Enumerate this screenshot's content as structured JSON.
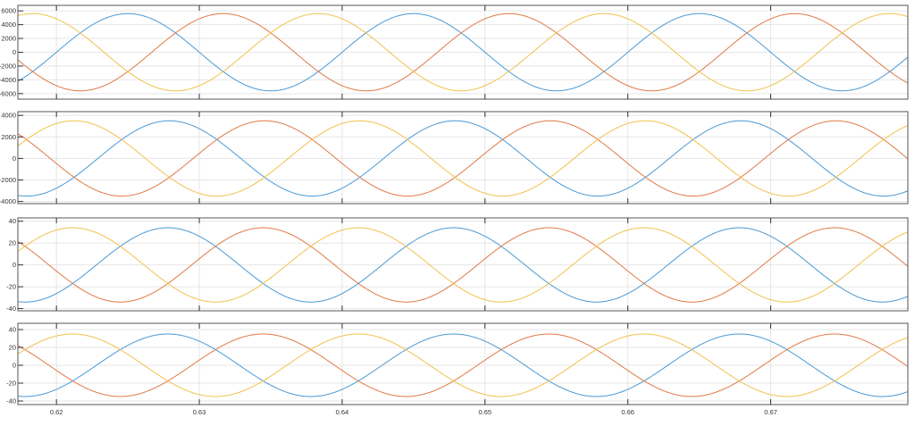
{
  "chart_data": [
    {
      "type": "line",
      "xlim": [
        0.6173,
        0.6796
      ],
      "ylim": [
        -6800,
        6800
      ],
      "yticks": [
        -6000,
        -4000,
        -2000,
        0,
        2000,
        4000,
        6000
      ],
      "xticks": [
        0.62,
        0.63,
        0.64,
        0.65,
        0.66,
        0.67
      ],
      "show_xtick_labels": false,
      "grid": true,
      "series": [
        {
          "color": "#4a9ad6",
          "amplitude": 5600,
          "frequency_hz": 50,
          "peak_time": 0.625
        },
        {
          "color": "#e07a45",
          "amplitude": 5600,
          "frequency_hz": 50,
          "peak_time": 0.63167
        },
        {
          "color": "#f2c14e",
          "amplitude": 5600,
          "frequency_hz": 50,
          "peak_time": 0.61833
        }
      ]
    },
    {
      "type": "line",
      "xlim": [
        0.6173,
        0.6796
      ],
      "ylim": [
        -4200,
        4350
      ],
      "yticks": [
        -4000,
        -2000,
        0,
        2000,
        4000
      ],
      "xticks": [
        0.62,
        0.63,
        0.64,
        0.65,
        0.66,
        0.67
      ],
      "show_xtick_labels": false,
      "grid": true,
      "series": [
        {
          "color": "#4a9ad6",
          "amplitude": 3500,
          "frequency_hz": 50,
          "peak_time": 0.6279
        },
        {
          "color": "#e07a45",
          "amplitude": 3500,
          "frequency_hz": 50,
          "peak_time": 0.63457
        },
        {
          "color": "#f2c14e",
          "amplitude": 3500,
          "frequency_hz": 50,
          "peak_time": 0.62123
        }
      ]
    },
    {
      "type": "line",
      "xlim": [
        0.6173,
        0.6796
      ],
      "ylim": [
        -42,
        43
      ],
      "yticks": [
        -40,
        -20,
        0,
        20,
        40
      ],
      "xticks": [
        0.62,
        0.63,
        0.64,
        0.65,
        0.66,
        0.67
      ],
      "show_xtick_labels": false,
      "grid": true,
      "series": [
        {
          "color": "#4a9ad6",
          "amplitude": 34,
          "frequency_hz": 50,
          "peak_time": 0.6278
        },
        {
          "color": "#e07a45",
          "amplitude": 34,
          "frequency_hz": 50,
          "peak_time": 0.63447
        },
        {
          "color": "#f2c14e",
          "amplitude": 34,
          "frequency_hz": 50,
          "peak_time": 0.62113
        }
      ]
    },
    {
      "type": "line",
      "xlim": [
        0.6173,
        0.6796
      ],
      "ylim": [
        -44,
        47
      ],
      "yticks": [
        -40,
        -20,
        0,
        20,
        40
      ],
      "xticks": [
        0.62,
        0.63,
        0.64,
        0.65,
        0.66,
        0.67
      ],
      "xtick_labels": [
        "0.62",
        "0.63",
        "0.64",
        "0.65",
        "0.66",
        "0.67"
      ],
      "show_xtick_labels": true,
      "grid": true,
      "series": [
        {
          "color": "#4a9ad6",
          "amplitude": 35,
          "frequency_hz": 50,
          "peak_time": 0.6278
        },
        {
          "color": "#e07a45",
          "amplitude": 35,
          "frequency_hz": 50,
          "peak_time": 0.63447
        },
        {
          "color": "#f2c14e",
          "amplitude": 35,
          "frequency_hz": 50,
          "peak_time": 0.62113
        }
      ]
    }
  ]
}
